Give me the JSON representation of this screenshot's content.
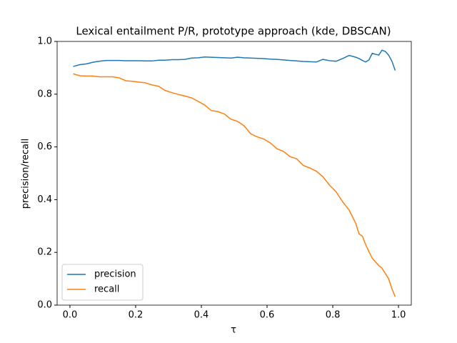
{
  "chart_data": {
    "type": "line",
    "title": "Lexical entailment P/R, prototype approach (kde, DBSCAN)",
    "xlabel": "τ",
    "ylabel": "precision/recall",
    "x": [
      0.01,
      0.03,
      0.05,
      0.07,
      0.09,
      0.11,
      0.13,
      0.15,
      0.17,
      0.19,
      0.21,
      0.23,
      0.25,
      0.27,
      0.29,
      0.31,
      0.33,
      0.35,
      0.37,
      0.39,
      0.41,
      0.43,
      0.45,
      0.47,
      0.49,
      0.51,
      0.53,
      0.55,
      0.57,
      0.59,
      0.61,
      0.63,
      0.65,
      0.67,
      0.69,
      0.71,
      0.73,
      0.75,
      0.77,
      0.79,
      0.81,
      0.83,
      0.85,
      0.87,
      0.88,
      0.89,
      0.9,
      0.91,
      0.92,
      0.94,
      0.95,
      0.96,
      0.97,
      0.98,
      0.99
    ],
    "series": [
      {
        "name": "precision",
        "color": "#1f77b4",
        "values": [
          0.905,
          0.912,
          0.915,
          0.921,
          0.925,
          0.928,
          0.928,
          0.928,
          0.927,
          0.927,
          0.927,
          0.926,
          0.926,
          0.929,
          0.929,
          0.931,
          0.931,
          0.932,
          0.937,
          0.938,
          0.941,
          0.94,
          0.939,
          0.938,
          0.937,
          0.94,
          0.938,
          0.937,
          0.936,
          0.935,
          0.933,
          0.932,
          0.93,
          0.928,
          0.926,
          0.924,
          0.923,
          0.922,
          0.932,
          0.927,
          0.925,
          0.935,
          0.947,
          0.94,
          0.935,
          0.928,
          0.922,
          0.93,
          0.955,
          0.948,
          0.967,
          0.962,
          0.948,
          0.925,
          0.89
        ]
      },
      {
        "name": "recall",
        "color": "#ff7f0e",
        "values": [
          0.877,
          0.87,
          0.869,
          0.869,
          0.866,
          0.866,
          0.866,
          0.862,
          0.851,
          0.849,
          0.846,
          0.843,
          0.835,
          0.83,
          0.814,
          0.806,
          0.799,
          0.793,
          0.786,
          0.773,
          0.759,
          0.738,
          0.734,
          0.725,
          0.705,
          0.697,
          0.68,
          0.65,
          0.638,
          0.63,
          0.615,
          0.593,
          0.583,
          0.563,
          0.555,
          0.53,
          0.52,
          0.508,
          0.487,
          0.455,
          0.43,
          0.392,
          0.36,
          0.31,
          0.27,
          0.262,
          0.23,
          0.203,
          0.178,
          0.15,
          0.14,
          0.12,
          0.1,
          0.062,
          0.032
        ]
      }
    ],
    "xlim": [
      -0.039,
      1.039
    ],
    "xticks": [
      {
        "value": 0,
        "label": "0.0"
      },
      0.2,
      0.4,
      0.6,
      0.8,
      {
        "value": 1,
        "label": "1.0"
      }
    ],
    "ylim": [
      0,
      1
    ],
    "yticks": [
      {
        "value": 0,
        "label": "0.0"
      },
      0.2,
      0.4,
      0.6,
      0.8,
      {
        "value": 1,
        "label": "1.0"
      }
    ],
    "grid": false,
    "legend": "lower left"
  }
}
